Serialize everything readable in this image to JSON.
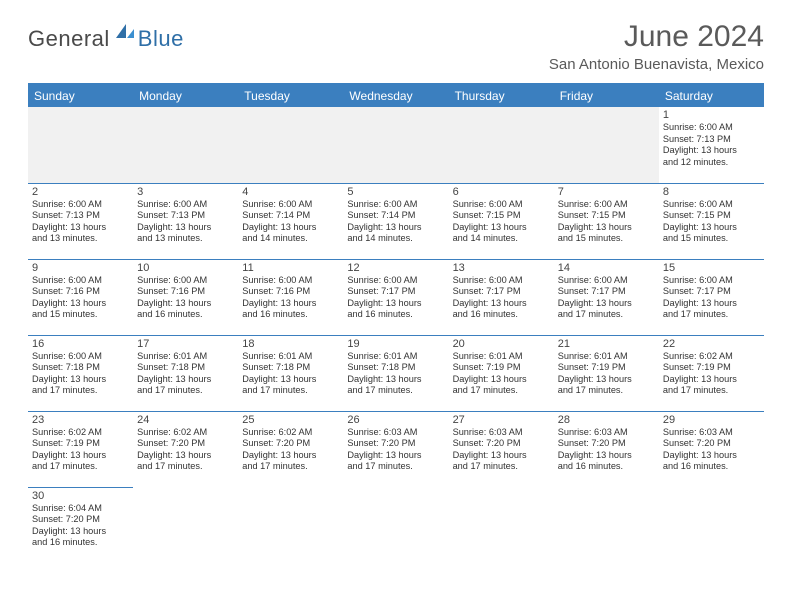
{
  "logo": {
    "general": "General",
    "blue": "Blue"
  },
  "title": "June 2024",
  "location": "San Antonio Buenavista, Mexico",
  "header_bg": "#3b7fbf",
  "days": [
    "Sunday",
    "Monday",
    "Tuesday",
    "Wednesday",
    "Thursday",
    "Friday",
    "Saturday"
  ],
  "cell_border_color": "#3b7fbf",
  "text_color": "#333333",
  "daynum_fontsize": 11,
  "detail_fontsize": 9.2,
  "weeks": [
    [
      null,
      null,
      null,
      null,
      null,
      null,
      {
        "n": "1",
        "sr": "Sunrise: 6:00 AM",
        "ss": "Sunset: 7:13 PM",
        "dl1": "Daylight: 13 hours",
        "dl2": "and 12 minutes."
      }
    ],
    [
      {
        "n": "2",
        "sr": "Sunrise: 6:00 AM",
        "ss": "Sunset: 7:13 PM",
        "dl1": "Daylight: 13 hours",
        "dl2": "and 13 minutes."
      },
      {
        "n": "3",
        "sr": "Sunrise: 6:00 AM",
        "ss": "Sunset: 7:13 PM",
        "dl1": "Daylight: 13 hours",
        "dl2": "and 13 minutes."
      },
      {
        "n": "4",
        "sr": "Sunrise: 6:00 AM",
        "ss": "Sunset: 7:14 PM",
        "dl1": "Daylight: 13 hours",
        "dl2": "and 14 minutes."
      },
      {
        "n": "5",
        "sr": "Sunrise: 6:00 AM",
        "ss": "Sunset: 7:14 PM",
        "dl1": "Daylight: 13 hours",
        "dl2": "and 14 minutes."
      },
      {
        "n": "6",
        "sr": "Sunrise: 6:00 AM",
        "ss": "Sunset: 7:15 PM",
        "dl1": "Daylight: 13 hours",
        "dl2": "and 14 minutes."
      },
      {
        "n": "7",
        "sr": "Sunrise: 6:00 AM",
        "ss": "Sunset: 7:15 PM",
        "dl1": "Daylight: 13 hours",
        "dl2": "and 15 minutes."
      },
      {
        "n": "8",
        "sr": "Sunrise: 6:00 AM",
        "ss": "Sunset: 7:15 PM",
        "dl1": "Daylight: 13 hours",
        "dl2": "and 15 minutes."
      }
    ],
    [
      {
        "n": "9",
        "sr": "Sunrise: 6:00 AM",
        "ss": "Sunset: 7:16 PM",
        "dl1": "Daylight: 13 hours",
        "dl2": "and 15 minutes."
      },
      {
        "n": "10",
        "sr": "Sunrise: 6:00 AM",
        "ss": "Sunset: 7:16 PM",
        "dl1": "Daylight: 13 hours",
        "dl2": "and 16 minutes."
      },
      {
        "n": "11",
        "sr": "Sunrise: 6:00 AM",
        "ss": "Sunset: 7:16 PM",
        "dl1": "Daylight: 13 hours",
        "dl2": "and 16 minutes."
      },
      {
        "n": "12",
        "sr": "Sunrise: 6:00 AM",
        "ss": "Sunset: 7:17 PM",
        "dl1": "Daylight: 13 hours",
        "dl2": "and 16 minutes."
      },
      {
        "n": "13",
        "sr": "Sunrise: 6:00 AM",
        "ss": "Sunset: 7:17 PM",
        "dl1": "Daylight: 13 hours",
        "dl2": "and 16 minutes."
      },
      {
        "n": "14",
        "sr": "Sunrise: 6:00 AM",
        "ss": "Sunset: 7:17 PM",
        "dl1": "Daylight: 13 hours",
        "dl2": "and 17 minutes."
      },
      {
        "n": "15",
        "sr": "Sunrise: 6:00 AM",
        "ss": "Sunset: 7:17 PM",
        "dl1": "Daylight: 13 hours",
        "dl2": "and 17 minutes."
      }
    ],
    [
      {
        "n": "16",
        "sr": "Sunrise: 6:00 AM",
        "ss": "Sunset: 7:18 PM",
        "dl1": "Daylight: 13 hours",
        "dl2": "and 17 minutes."
      },
      {
        "n": "17",
        "sr": "Sunrise: 6:01 AM",
        "ss": "Sunset: 7:18 PM",
        "dl1": "Daylight: 13 hours",
        "dl2": "and 17 minutes."
      },
      {
        "n": "18",
        "sr": "Sunrise: 6:01 AM",
        "ss": "Sunset: 7:18 PM",
        "dl1": "Daylight: 13 hours",
        "dl2": "and 17 minutes."
      },
      {
        "n": "19",
        "sr": "Sunrise: 6:01 AM",
        "ss": "Sunset: 7:18 PM",
        "dl1": "Daylight: 13 hours",
        "dl2": "and 17 minutes."
      },
      {
        "n": "20",
        "sr": "Sunrise: 6:01 AM",
        "ss": "Sunset: 7:19 PM",
        "dl1": "Daylight: 13 hours",
        "dl2": "and 17 minutes."
      },
      {
        "n": "21",
        "sr": "Sunrise: 6:01 AM",
        "ss": "Sunset: 7:19 PM",
        "dl1": "Daylight: 13 hours",
        "dl2": "and 17 minutes."
      },
      {
        "n": "22",
        "sr": "Sunrise: 6:02 AM",
        "ss": "Sunset: 7:19 PM",
        "dl1": "Daylight: 13 hours",
        "dl2": "and 17 minutes."
      }
    ],
    [
      {
        "n": "23",
        "sr": "Sunrise: 6:02 AM",
        "ss": "Sunset: 7:19 PM",
        "dl1": "Daylight: 13 hours",
        "dl2": "and 17 minutes."
      },
      {
        "n": "24",
        "sr": "Sunrise: 6:02 AM",
        "ss": "Sunset: 7:20 PM",
        "dl1": "Daylight: 13 hours",
        "dl2": "and 17 minutes."
      },
      {
        "n": "25",
        "sr": "Sunrise: 6:02 AM",
        "ss": "Sunset: 7:20 PM",
        "dl1": "Daylight: 13 hours",
        "dl2": "and 17 minutes."
      },
      {
        "n": "26",
        "sr": "Sunrise: 6:03 AM",
        "ss": "Sunset: 7:20 PM",
        "dl1": "Daylight: 13 hours",
        "dl2": "and 17 minutes."
      },
      {
        "n": "27",
        "sr": "Sunrise: 6:03 AM",
        "ss": "Sunset: 7:20 PM",
        "dl1": "Daylight: 13 hours",
        "dl2": "and 17 minutes."
      },
      {
        "n": "28",
        "sr": "Sunrise: 6:03 AM",
        "ss": "Sunset: 7:20 PM",
        "dl1": "Daylight: 13 hours",
        "dl2": "and 16 minutes."
      },
      {
        "n": "29",
        "sr": "Sunrise: 6:03 AM",
        "ss": "Sunset: 7:20 PM",
        "dl1": "Daylight: 13 hours",
        "dl2": "and 16 minutes."
      }
    ],
    [
      {
        "n": "30",
        "sr": "Sunrise: 6:04 AM",
        "ss": "Sunset: 7:20 PM",
        "dl1": "Daylight: 13 hours",
        "dl2": "and 16 minutes."
      },
      null,
      null,
      null,
      null,
      null,
      null
    ]
  ]
}
